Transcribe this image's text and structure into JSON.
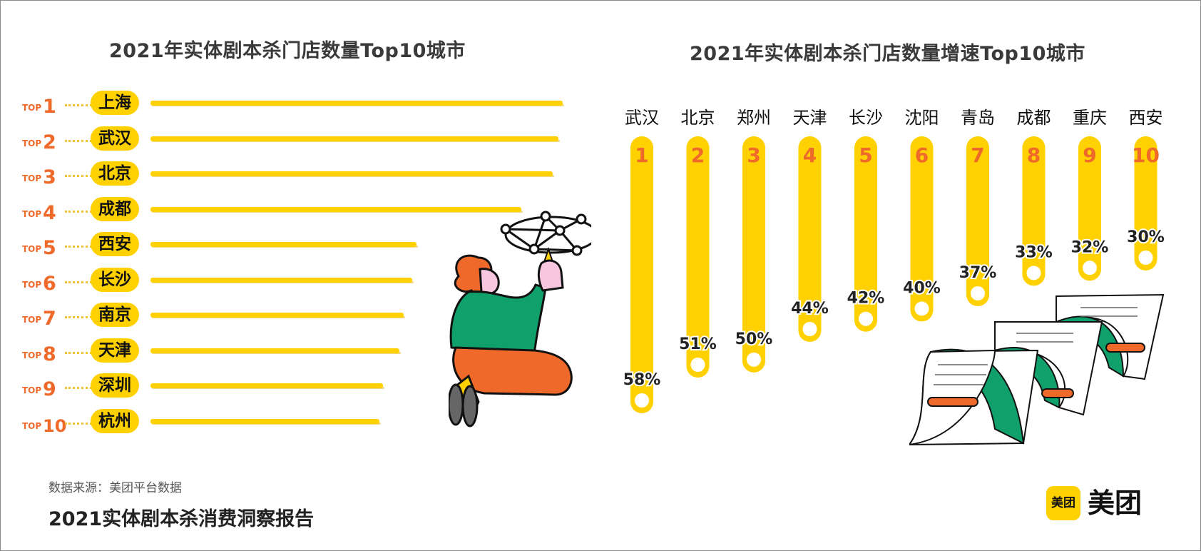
{
  "left_title": "2021年实体剧本杀门店数量Top10城市",
  "right_title": "2021年实体剧本杀门店数量增速Top10城市",
  "rank_prefix": "TOP",
  "footer": {
    "source": "数据来源：美团平台数据",
    "report": "2021实体剧本杀消费洞察报告"
  },
  "logo": {
    "badge": "美团",
    "text": "美团"
  },
  "colors": {
    "accent": "#ffd100",
    "rank": "#ef6a2a",
    "text": "#222222"
  },
  "chart_data": [
    {
      "type": "bar",
      "orientation": "horizontal",
      "title": "2021年实体剧本杀门店数量Top10城市",
      "categories": [
        "上海",
        "武汉",
        "北京",
        "成都",
        "西安",
        "长沙",
        "南京",
        "天津",
        "深圳",
        "杭州"
      ],
      "ranks": [
        1,
        2,
        3,
        4,
        5,
        6,
        7,
        8,
        9,
        10
      ],
      "values": [
        100,
        99,
        97.6,
        90,
        64.6,
        63.5,
        61.5,
        60.3,
        56.4,
        55.6
      ]
    },
    {
      "type": "bar",
      "orientation": "vertical",
      "title": "2021年实体剧本杀门店数量增速Top10城市",
      "categories": [
        "武汉",
        "北京",
        "郑州",
        "天津",
        "长沙",
        "沈阳",
        "青岛",
        "成都",
        "重庆",
        "西安"
      ],
      "ranks": [
        "1",
        "2",
        "3",
        "4",
        "5",
        "6",
        "7",
        "8",
        "9",
        "10"
      ],
      "values": [
        58,
        51,
        50,
        44,
        42,
        40,
        37,
        33,
        32,
        30
      ],
      "value_labels": [
        "58%",
        "51%",
        "50%",
        "44%",
        "42%",
        "40%",
        "37%",
        "33%",
        "32%",
        "30%"
      ]
    }
  ]
}
